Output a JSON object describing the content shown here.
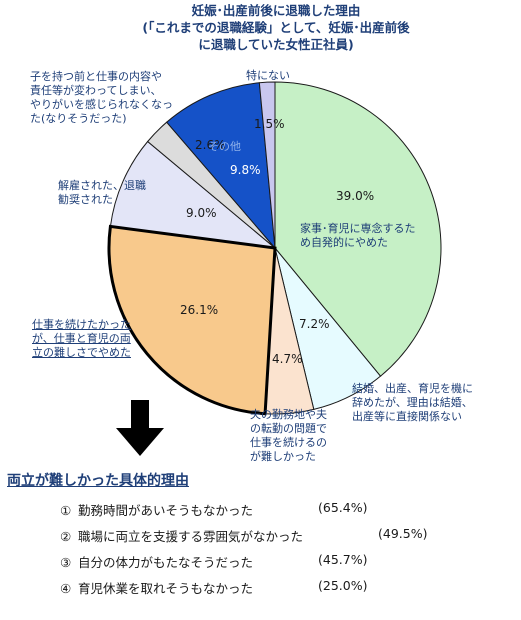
{
  "title": {
    "line1": "妊娠･出産前後に退職した理由",
    "line2": "(「これまでの退職経験」として、妊娠･出産前後",
    "line3": "に退職していた女性正社員)"
  },
  "chart_data": {
    "type": "pie",
    "title": "妊娠･出産前後に退職した理由",
    "slices": [
      {
        "value": 39.0,
        "label": "39.0%",
        "name": [
          "家事･育児に専念するた",
          "め自発的にやめた"
        ],
        "color": "#c6f0c6"
      },
      {
        "value": 7.2,
        "label": "7.2%",
        "name": [
          "結婚、出産、育児を機に",
          "辞めたが、理由は結婚、",
          "出産等に直接関係ない"
        ],
        "color": "#e6fbff"
      },
      {
        "value": 4.7,
        "label": "4.7%",
        "name": [
          "夫の勤務地や夫",
          "の転勤の問題で",
          "仕事を続けるの",
          "が難しかった"
        ],
        "color": "#fbe3cf"
      },
      {
        "value": 26.1,
        "label": "26.1%",
        "name": [
          "仕事を続けたかった",
          "が、仕事と育児の両",
          "立の難しさでやめた"
        ],
        "color": "#f8c98c",
        "emphasized": true
      },
      {
        "value": 9.0,
        "label": "9.0%",
        "name": [
          "解雇された、退職",
          "勧奨された"
        ],
        "color": "#e3e5f7"
      },
      {
        "value": 2.6,
        "label": "2.6%",
        "name": [
          "子を持つ前と仕事の内容や",
          "責任等が変わってしまい、",
          "やりがいを感じられなくなっ",
          "た(なりそうだった)"
        ],
        "color": "#dcdcdc"
      },
      {
        "value": 9.8,
        "label": "9.8%",
        "name": [
          "その他"
        ],
        "color": "#1552c8"
      },
      {
        "value": 1.5,
        "label": "1.5%",
        "name": [
          "特にない"
        ],
        "color": "#c9c7ef"
      }
    ]
  },
  "arrow_icon": "down-arrow-icon",
  "subtitle": "両立が難しかった具体的理由",
  "reasons": [
    {
      "num": "①",
      "text": "勤務時間があいそうもなかった",
      "value": "(65.4%)"
    },
    {
      "num": "②",
      "text": "職場に両立を支援する雰囲気がなかった",
      "value": "(49.5%)"
    },
    {
      "num": "③",
      "text": "自分の体力がもたなそうだった",
      "value": "(45.7%)"
    },
    {
      "num": "④",
      "text": "育児休業を取れそうもなかった",
      "value": "(25.0%)"
    }
  ]
}
